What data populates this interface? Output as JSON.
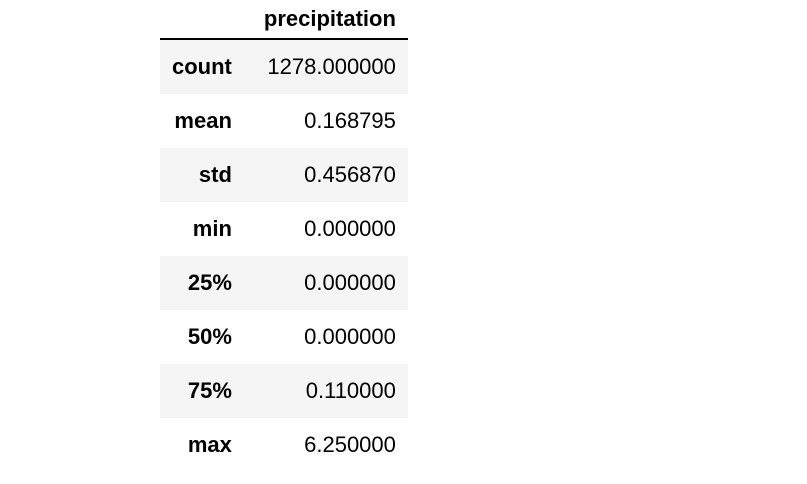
{
  "table": {
    "columns": [
      "precipitation"
    ],
    "rows": [
      {
        "label": "count",
        "value": "1278.000000"
      },
      {
        "label": "mean",
        "value": "0.168795"
      },
      {
        "label": "std",
        "value": "0.456870"
      },
      {
        "label": "min",
        "value": "0.000000"
      },
      {
        "label": "25%",
        "value": "0.000000"
      },
      {
        "label": "50%",
        "value": "0.000000"
      },
      {
        "label": "75%",
        "value": "0.110000"
      },
      {
        "label": "max",
        "value": "6.250000"
      }
    ]
  },
  "colors": {
    "stripe": "#f5f5f5",
    "background": "#ffffff",
    "text": "#000000",
    "header_rule": "#000000"
  }
}
